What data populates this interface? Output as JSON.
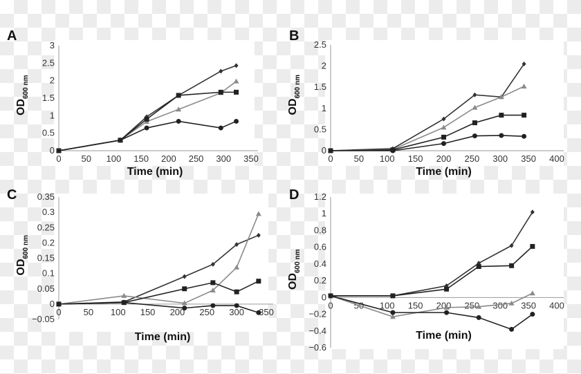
{
  "chart_data": [
    {
      "type": "line",
      "panel_label": "A",
      "xlabel": "Time (min)",
      "ylabel": "OD",
      "ylabel_sub": "600 nm",
      "xlim": [
        0,
        350
      ],
      "ylim": [
        0,
        3
      ],
      "xticks": [
        0,
        50,
        100,
        150,
        200,
        250,
        300,
        350
      ],
      "yticks": [
        0,
        0.5,
        1,
        1.5,
        2,
        2.5,
        3
      ],
      "x": [
        0,
        112,
        160,
        218,
        295,
        323
      ],
      "series": [
        {
          "marker": "diamond",
          "color": "#333333",
          "values": [
            0,
            0.3,
            0.97,
            1.58,
            2.27,
            2.43
          ]
        },
        {
          "marker": "triangle",
          "color": "#8a8a8a",
          "values": [
            0,
            0.3,
            0.83,
            1.18,
            1.65,
            1.98
          ]
        },
        {
          "marker": "square",
          "color": "#222222",
          "values": [
            0,
            0.3,
            0.9,
            1.58,
            1.67,
            1.67
          ]
        },
        {
          "marker": "circle",
          "color": "#222222",
          "values": [
            0,
            0.3,
            0.65,
            0.84,
            0.65,
            0.84
          ]
        }
      ]
    },
    {
      "type": "line",
      "panel_label": "B",
      "xlabel": "Time (min)",
      "ylabel": "OD",
      "ylabel_sub": "600 nm",
      "xlim": [
        0,
        400
      ],
      "ylim": [
        0,
        2.5
      ],
      "xticks": [
        0,
        50,
        100,
        150,
        200,
        250,
        300,
        350,
        400
      ],
      "yticks": [
        0,
        0.5,
        1,
        1.5,
        2,
        2.5
      ],
      "x": [
        0,
        110,
        200,
        255,
        302,
        342
      ],
      "series": [
        {
          "marker": "diamond",
          "color": "#333333",
          "values": [
            0,
            0.05,
            0.75,
            1.32,
            1.27,
            2.05
          ]
        },
        {
          "marker": "triangle",
          "color": "#8a8a8a",
          "values": [
            0,
            0.03,
            0.55,
            1.02,
            1.27,
            1.52
          ]
        },
        {
          "marker": "square",
          "color": "#222222",
          "values": [
            0,
            0.02,
            0.32,
            0.66,
            0.84,
            0.84
          ]
        },
        {
          "marker": "circle",
          "color": "#222222",
          "values": [
            0,
            0,
            0.17,
            0.35,
            0.36,
            0.34
          ]
        }
      ]
    },
    {
      "type": "line",
      "panel_label": "C",
      "xlabel": "Time (min)",
      "ylabel": "OD",
      "ylabel_sub": "600 nm",
      "xlim": [
        0,
        350
      ],
      "ylim": [
        -0.05,
        0.35
      ],
      "xticks": [
        0,
        50,
        100,
        150,
        200,
        250,
        300,
        350
      ],
      "yticks": [
        -0.05,
        0,
        0.05,
        0.1,
        0.15,
        0.2,
        0.25,
        0.3,
        0.35
      ],
      "x": [
        0,
        110,
        212,
        260,
        300,
        337
      ],
      "series": [
        {
          "marker": "diamond",
          "color": "#333333",
          "values": [
            0,
            0.007,
            0.09,
            0.13,
            0.195,
            0.225
          ]
        },
        {
          "marker": "triangle",
          "color": "#8a8a8a",
          "values": [
            0,
            0.027,
            0.003,
            0.045,
            0.12,
            0.295
          ]
        },
        {
          "marker": "square",
          "color": "#222222",
          "values": [
            0,
            0.005,
            0.05,
            0.07,
            0.04,
            0.075
          ]
        },
        {
          "marker": "circle",
          "color": "#222222",
          "values": [
            0,
            0.005,
            -0.013,
            -0.005,
            -0.005,
            -0.028
          ]
        }
      ]
    },
    {
      "type": "line",
      "panel_label": "D",
      "xlabel": "Time (min)",
      "ylabel": "OD",
      "ylabel_sub": "600 nm",
      "xlim": [
        0,
        400
      ],
      "ylim": [
        -0.6,
        1.2
      ],
      "xticks": [
        0,
        50,
        100,
        150,
        200,
        250,
        300,
        350,
        400
      ],
      "yticks": [
        -0.6,
        -0.4,
        -0.2,
        0,
        0.2,
        0.4,
        0.6,
        0.8,
        1,
        1.2
      ],
      "x": [
        0,
        110,
        205,
        262,
        320,
        357
      ],
      "series": [
        {
          "marker": "diamond",
          "color": "#333333",
          "values": [
            0.02,
            0.02,
            0.14,
            0.41,
            0.62,
            1.02
          ]
        },
        {
          "marker": "square",
          "color": "#222222",
          "values": [
            0.02,
            0.02,
            0.1,
            0.37,
            0.38,
            0.61
          ]
        },
        {
          "marker": "triangle",
          "color": "#8a8a8a",
          "values": [
            0.02,
            -0.23,
            -0.12,
            -0.11,
            -0.07,
            0.05
          ]
        },
        {
          "marker": "circle",
          "color": "#222222",
          "values": [
            0.02,
            -0.18,
            -0.18,
            -0.24,
            -0.38,
            -0.2
          ]
        }
      ]
    }
  ]
}
